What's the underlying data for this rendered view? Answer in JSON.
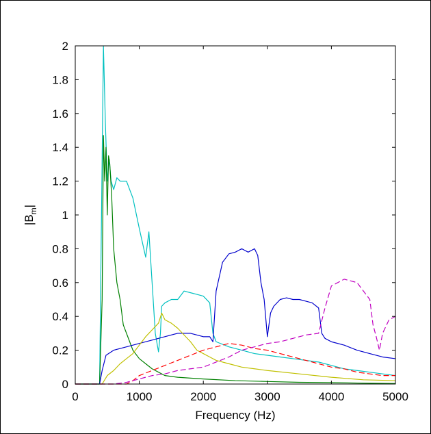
{
  "chart_data": {
    "type": "line",
    "xlabel": "Frequency (Hz)",
    "ylabel_main": "|B",
    "ylabel_sub": "m",
    "ylabel_end": "|",
    "xlim": [
      0,
      5000
    ],
    "ylim": [
      0,
      2
    ],
    "xticks": [
      0,
      1000,
      2000,
      3000,
      4000,
      5000
    ],
    "yticks": [
      0,
      0.2,
      0.4,
      0.6,
      0.8,
      1,
      1.2,
      1.4,
      1.6,
      1.8,
      2
    ],
    "ytick_labels": [
      "0",
      "0.2",
      "0.4",
      "0.6",
      "0.8",
      "1",
      "1.2",
      "1.4",
      "1.6",
      "1.8",
      "2"
    ],
    "grid": false,
    "legend": "none",
    "series": [
      {
        "color": "#00c0c0",
        "style": "solid",
        "x": [
          0,
          380,
          440,
          470,
          500,
          530,
          560,
          600,
          650,
          700,
          800,
          900,
          1000,
          1100,
          1150,
          1200,
          1250,
          1300,
          1330,
          1350,
          1400,
          1500,
          1600,
          1700,
          1800,
          1900,
          2000,
          2100,
          2150,
          2200,
          2400,
          2600,
          2800,
          3000,
          3200,
          3400,
          3600,
          3800,
          4000,
          4200,
          4400,
          4600,
          4800,
          5000
        ],
        "y": [
          0,
          0,
          2.0,
          1.55,
          1.2,
          1.33,
          1.2,
          1.15,
          1.22,
          1.2,
          1.2,
          1.1,
          0.92,
          0.75,
          0.9,
          0.6,
          0.3,
          0.19,
          0.3,
          0.46,
          0.48,
          0.5,
          0.5,
          0.55,
          0.54,
          0.53,
          0.52,
          0.48,
          0.3,
          0.25,
          0.22,
          0.2,
          0.18,
          0.17,
          0.16,
          0.15,
          0.14,
          0.13,
          0.11,
          0.09,
          0.08,
          0.07,
          0.06,
          0.05
        ]
      },
      {
        "color": "#008000",
        "style": "solid",
        "x": [
          0,
          380,
          420,
          440,
          460,
          480,
          500,
          520,
          540,
          570,
          600,
          650,
          700,
          750,
          800,
          900,
          1000,
          1100,
          1200,
          1300,
          1400,
          1600,
          1800,
          2000,
          2500,
          3000,
          3500,
          4000,
          4500,
          5000
        ],
        "y": [
          0,
          0,
          0.5,
          1.47,
          1.2,
          1.4,
          1.0,
          1.35,
          1.3,
          1.1,
          0.8,
          0.6,
          0.5,
          0.35,
          0.3,
          0.2,
          0.15,
          0.12,
          0.09,
          0.07,
          0.05,
          0.04,
          0.035,
          0.03,
          0.02,
          0.015,
          0.01,
          0.008,
          0.005,
          0.003
        ]
      },
      {
        "color": "#0000cc",
        "style": "solid",
        "x": [
          0,
          380,
          420,
          480,
          600,
          800,
          1000,
          1200,
          1400,
          1600,
          1800,
          2000,
          2100,
          2150,
          2200,
          2300,
          2400,
          2500,
          2600,
          2700,
          2800,
          2850,
          2900,
          2950,
          3000,
          3050,
          3100,
          3200,
          3300,
          3400,
          3500,
          3600,
          3700,
          3800,
          3850,
          3900,
          4000,
          4200,
          4400,
          4600,
          4800,
          5000
        ],
        "y": [
          0,
          0,
          0.08,
          0.17,
          0.2,
          0.22,
          0.24,
          0.26,
          0.28,
          0.3,
          0.3,
          0.28,
          0.28,
          0.25,
          0.55,
          0.72,
          0.77,
          0.78,
          0.8,
          0.78,
          0.8,
          0.76,
          0.6,
          0.5,
          0.28,
          0.42,
          0.46,
          0.5,
          0.51,
          0.5,
          0.5,
          0.49,
          0.48,
          0.45,
          0.3,
          0.27,
          0.25,
          0.23,
          0.2,
          0.18,
          0.16,
          0.15
        ]
      },
      {
        "color": "#c0c000",
        "style": "solid",
        "x": [
          0,
          420,
          500,
          600,
          700,
          800,
          900,
          1000,
          1100,
          1200,
          1300,
          1350,
          1400,
          1500,
          1600,
          1700,
          1800,
          1900,
          2000,
          2100,
          2200,
          2400,
          2600,
          2800,
          3000,
          3500,
          4000,
          4500,
          5000
        ],
        "y": [
          0,
          0,
          0.05,
          0.08,
          0.12,
          0.15,
          0.18,
          0.23,
          0.28,
          0.32,
          0.36,
          0.42,
          0.38,
          0.36,
          0.33,
          0.29,
          0.25,
          0.2,
          0.18,
          0.16,
          0.14,
          0.12,
          0.1,
          0.09,
          0.08,
          0.06,
          0.04,
          0.025,
          0.02
        ]
      },
      {
        "color": "#ff0000",
        "style": "dashed",
        "x": [
          0,
          800,
          900,
          1000,
          1200,
          1400,
          1600,
          1800,
          2000,
          2200,
          2400,
          2600,
          2800,
          3000,
          3200,
          3400,
          3600,
          3800,
          4000,
          4200,
          4400,
          4600,
          4800,
          5000
        ],
        "y": [
          0,
          0,
          0.02,
          0.05,
          0.08,
          0.11,
          0.14,
          0.17,
          0.2,
          0.22,
          0.24,
          0.23,
          0.21,
          0.2,
          0.18,
          0.16,
          0.14,
          0.12,
          0.1,
          0.09,
          0.07,
          0.06,
          0.05,
          0.05
        ]
      },
      {
        "color": "#c000c0",
        "style": "dashed",
        "x": [
          0,
          600,
          800,
          1000,
          1200,
          1400,
          1600,
          1800,
          2000,
          2200,
          2400,
          2600,
          2800,
          3000,
          3200,
          3400,
          3600,
          3800,
          3900,
          4000,
          4100,
          4200,
          4300,
          4400,
          4500,
          4600,
          4650,
          4700,
          4750,
          4800,
          4900,
          5000
        ],
        "y": [
          0,
          0,
          0.01,
          0.03,
          0.05,
          0.06,
          0.08,
          0.09,
          0.1,
          0.13,
          0.16,
          0.2,
          0.22,
          0.24,
          0.25,
          0.27,
          0.29,
          0.3,
          0.45,
          0.58,
          0.6,
          0.62,
          0.61,
          0.6,
          0.55,
          0.5,
          0.35,
          0.28,
          0.2,
          0.3,
          0.38,
          0.4
        ]
      }
    ]
  }
}
